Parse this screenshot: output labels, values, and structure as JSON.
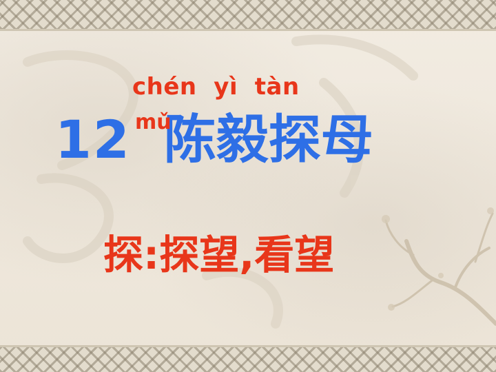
{
  "slide": {
    "pinyin_line": "chén  yì  tàn",
    "pinyin_mu": "mǔ",
    "lesson_number": "12",
    "lesson_name": "陈毅探母",
    "definition": "探:探望,看望"
  },
  "colors": {
    "pinyin": "#e8361a",
    "title": "#2e6fe6",
    "definition": "#e8361a",
    "background": "#efe8dc"
  }
}
